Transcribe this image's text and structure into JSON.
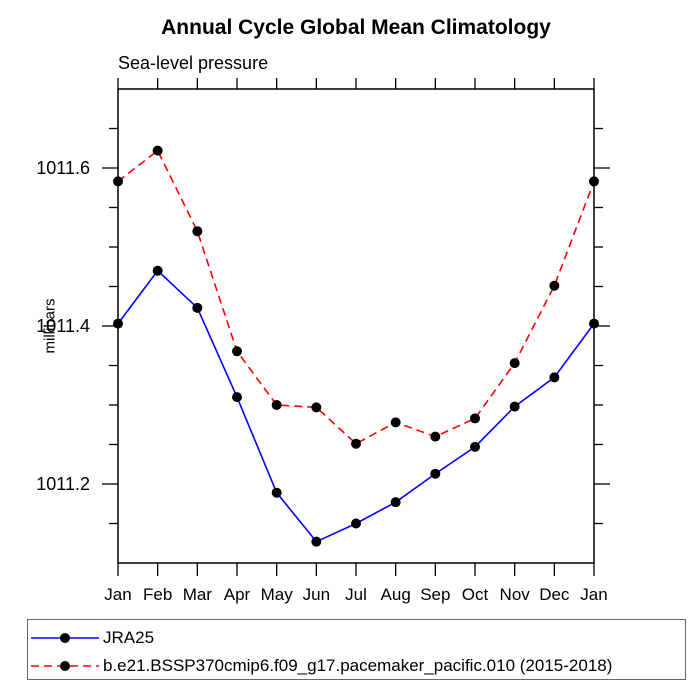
{
  "chart_data": {
    "type": "line",
    "title": "Annual Cycle Global Mean Climatology",
    "subtitle": "Sea-level pressure",
    "ylabel": "millibars",
    "xlabel": "",
    "categories": [
      "Jan",
      "Feb",
      "Mar",
      "Apr",
      "May",
      "Jun",
      "Jul",
      "Aug",
      "Sep",
      "Oct",
      "Nov",
      "Dec",
      "Jan"
    ],
    "series": [
      {
        "name": "JRA25",
        "color": "#0000ff",
        "line_style": "solid",
        "marker": "filled-circle",
        "marker_color": "#000000",
        "values": [
          1011.403,
          1011.47,
          1011.423,
          1011.31,
          1011.189,
          1011.127,
          1011.15,
          1011.177,
          1011.213,
          1011.247,
          1011.298,
          1011.335,
          1011.403
        ]
      },
      {
        "name": "b.e21.BSSP370cmip6.f09_g17.pacemaker_pacific.010 (2015-2018)",
        "color": "#ff0000",
        "line_style": "dashed",
        "marker": "filled-circle",
        "marker_color": "#000000",
        "values": [
          1011.583,
          1011.622,
          1011.52,
          1011.368,
          1011.3,
          1011.297,
          1011.251,
          1011.278,
          1011.26,
          1011.283,
          1011.353,
          1011.451,
          1011.583
        ]
      }
    ],
    "ylim": [
      1011.1,
      1011.7
    ],
    "yticks_major": [
      1011.2,
      1011.4,
      1011.6
    ],
    "ytick_labels": [
      "1011.2",
      "1011.4",
      "1011.6"
    ],
    "yticks_minor": [
      1011.15,
      1011.25,
      1011.3,
      1011.35,
      1011.45,
      1011.5,
      1011.55,
      1011.65
    ],
    "grid": false,
    "tick_direction": "out",
    "legend_position": "bottom-left"
  }
}
